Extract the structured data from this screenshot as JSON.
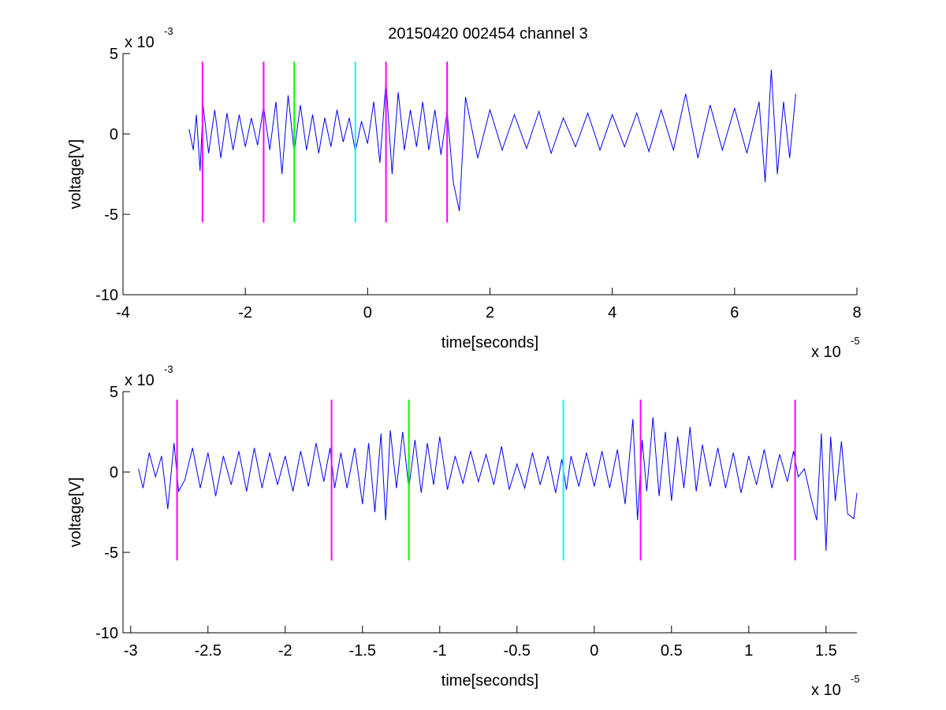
{
  "figure": {
    "title": "20150420 002454 channel 3",
    "background": "#ffffff"
  },
  "colors": {
    "signal": "#0000ff",
    "marker_magenta": "#ff00ff",
    "marker_green": "#00ff00",
    "marker_cyan": "#00ffff",
    "axis": "#000000"
  },
  "chart_data": [
    {
      "type": "line",
      "title": "20150420 002454 channel 3",
      "xlabel": "time[seconds]",
      "ylabel": "voltage[V]",
      "x_exponent_label": "x 10",
      "x_exponent": "-5",
      "y_exponent_label": "x 10",
      "y_exponent": "-3",
      "xlim": [
        -4,
        8
      ],
      "ylim": [
        -10,
        5
      ],
      "xticks": [
        -4,
        -2,
        0,
        2,
        4,
        6,
        8
      ],
      "xtick_labels": [
        "-4",
        "-2",
        "0",
        "2",
        "4",
        "6",
        "8"
      ],
      "yticks": [
        -10,
        -5,
        0,
        5
      ],
      "ytick_labels": [
        "-10",
        "-5",
        "0",
        "5"
      ],
      "grid": false,
      "series": [
        {
          "x": [
            -2.92,
            -2.85,
            -2.8,
            -2.74,
            -2.69,
            -2.6,
            -2.5,
            -2.4,
            -2.3,
            -2.2,
            -2.1,
            -2.0,
            -1.9,
            -1.8,
            -1.7,
            -1.6,
            -1.5,
            -1.4,
            -1.3,
            -1.2,
            -1.1,
            -1.0,
            -0.9,
            -0.8,
            -0.7,
            -0.6,
            -0.5,
            -0.4,
            -0.3,
            -0.2,
            -0.1,
            0.0,
            0.1,
            0.2,
            0.3,
            0.4,
            0.5,
            0.6,
            0.7,
            0.8,
            0.9,
            1.0,
            1.1,
            1.2,
            1.3,
            1.4,
            1.5,
            1.6,
            1.8,
            2.0,
            2.2,
            2.4,
            2.6,
            2.8,
            3.0,
            3.2,
            3.4,
            3.6,
            3.8,
            4.0,
            4.2,
            4.4,
            4.6,
            4.8,
            5.0,
            5.2,
            5.4,
            5.6,
            5.8,
            6.0,
            6.2,
            6.4,
            6.5,
            6.6,
            6.7,
            6.8,
            6.9,
            7.0
          ],
          "values": [
            0.3,
            -1.0,
            1.2,
            -2.3,
            1.8,
            -1.2,
            1.5,
            -1.5,
            1.3,
            -1.0,
            1.2,
            -0.8,
            1.0,
            -0.7,
            1.7,
            -1.0,
            2.0,
            -2.5,
            2.4,
            -1.1,
            1.8,
            -1.0,
            1.2,
            -1.2,
            1.0,
            -0.8,
            1.5,
            -0.5,
            1.0,
            -1.1,
            0.8,
            -0.6,
            2.0,
            -1.8,
            3.3,
            -2.5,
            2.6,
            -1.0,
            1.5,
            -0.8,
            2.0,
            -1.0,
            1.5,
            -1.3,
            1.4,
            -3.0,
            -4.8,
            2.3,
            -1.5,
            1.5,
            -1.0,
            1.2,
            -0.9,
            1.4,
            -1.2,
            1.0,
            -0.8,
            1.3,
            -1.0,
            1.2,
            -0.8,
            1.3,
            -1.1,
            1.5,
            -1.0,
            2.5,
            -1.5,
            1.8,
            -1.0,
            1.6,
            -1.2,
            2.0,
            -3.0,
            4.0,
            -2.5,
            2.0,
            -1.5,
            2.5
          ]
        }
      ],
      "markers": [
        {
          "x": -2.7,
          "color": "#ff00ff",
          "ymin": -5.5,
          "ymax": 4.5
        },
        {
          "x": -1.7,
          "color": "#ff00ff",
          "ymin": -5.5,
          "ymax": 4.5
        },
        {
          "x": -1.2,
          "color": "#00ff00",
          "ymin": -5.5,
          "ymax": 4.5
        },
        {
          "x": -0.2,
          "color": "#00ffff",
          "ymin": -5.5,
          "ymax": 4.5
        },
        {
          "x": 0.3,
          "color": "#ff00ff",
          "ymin": -5.5,
          "ymax": 4.5
        },
        {
          "x": 1.3,
          "color": "#ff00ff",
          "ymin": -5.5,
          "ymax": 4.5
        }
      ]
    },
    {
      "type": "line",
      "title": "",
      "xlabel": "time[seconds]",
      "ylabel": "voltage[V]",
      "x_exponent_label": "x 10",
      "x_exponent": "-5",
      "y_exponent_label": "x 10",
      "y_exponent": "-3",
      "xlim": [
        -3.05,
        1.7
      ],
      "ylim": [
        -10,
        5
      ],
      "xticks": [
        -3,
        -2.5,
        -2,
        -1.5,
        -1,
        -0.5,
        0,
        0.5,
        1,
        1.5
      ],
      "xtick_labels": [
        "-3",
        "-2.5",
        "-2",
        "-1.5",
        "-1",
        "-0.5",
        "0",
        "0.5",
        "1",
        "1.5"
      ],
      "yticks": [
        -10,
        -5,
        0,
        5
      ],
      "ytick_labels": [
        "-10",
        "-5",
        "0",
        "5"
      ],
      "grid": false,
      "series": [
        {
          "x": [
            -2.95,
            -2.92,
            -2.88,
            -2.84,
            -2.8,
            -2.76,
            -2.72,
            -2.69,
            -2.65,
            -2.6,
            -2.55,
            -2.5,
            -2.45,
            -2.4,
            -2.35,
            -2.3,
            -2.25,
            -2.2,
            -2.15,
            -2.1,
            -2.05,
            -2.0,
            -1.95,
            -1.9,
            -1.85,
            -1.8,
            -1.75,
            -1.71,
            -1.68,
            -1.64,
            -1.6,
            -1.55,
            -1.5,
            -1.46,
            -1.42,
            -1.38,
            -1.35,
            -1.32,
            -1.28,
            -1.24,
            -1.2,
            -1.16,
            -1.12,
            -1.08,
            -1.04,
            -1.0,
            -0.95,
            -0.9,
            -0.85,
            -0.8,
            -0.75,
            -0.7,
            -0.65,
            -0.6,
            -0.55,
            -0.5,
            -0.45,
            -0.4,
            -0.35,
            -0.3,
            -0.25,
            -0.21,
            -0.18,
            -0.15,
            -0.1,
            -0.05,
            0.0,
            0.05,
            0.1,
            0.15,
            0.2,
            0.25,
            0.28,
            0.31,
            0.34,
            0.38,
            0.42,
            0.46,
            0.5,
            0.54,
            0.58,
            0.62,
            0.66,
            0.7,
            0.75,
            0.8,
            0.85,
            0.9,
            0.95,
            1.0,
            1.05,
            1.1,
            1.15,
            1.2,
            1.25,
            1.29,
            1.32,
            1.36,
            1.4,
            1.44,
            1.47,
            1.5,
            1.53,
            1.56,
            1.6,
            1.64,
            1.68,
            1.7
          ],
          "values": [
            0.2,
            -1.0,
            1.2,
            -0.3,
            1.0,
            -2.3,
            1.8,
            -1.2,
            -0.5,
            1.5,
            -1.0,
            1.2,
            -1.5,
            1.0,
            -0.8,
            1.3,
            -1.2,
            1.5,
            -1.0,
            1.2,
            -0.8,
            1.0,
            -1.2,
            1.3,
            -0.9,
            1.8,
            -0.6,
            1.5,
            -1.0,
            1.2,
            -1.0,
            1.5,
            -2.0,
            1.8,
            -2.5,
            2.4,
            -3.0,
            2.6,
            -1.0,
            2.5,
            -1.0,
            2.0,
            -1.3,
            1.8,
            -0.8,
            2.2,
            -1.1,
            1.0,
            -0.7,
            1.3,
            -0.6,
            1.1,
            -0.8,
            1.6,
            -1.1,
            0.5,
            -1.0,
            1.2,
            -0.8,
            1.0,
            -1.3,
            0.8,
            -1.1,
            1.0,
            -0.9,
            1.2,
            -0.9,
            1.3,
            -1.0,
            1.4,
            -2.0,
            3.3,
            -3.0,
            2.0,
            -1.2,
            3.4,
            -1.5,
            2.5,
            -1.8,
            2.2,
            -1.0,
            2.8,
            -1.2,
            1.7,
            -0.9,
            1.5,
            -1.0,
            1.2,
            -1.3,
            1.0,
            -0.8,
            1.4,
            -1.0,
            1.1,
            -0.6,
            1.3,
            -0.3,
            0.2,
            -1.5,
            -3.0,
            2.4,
            -4.9,
            2.2,
            -1.8,
            1.9,
            -2.6,
            -2.9,
            -1.3
          ]
        }
      ],
      "markers": [
        {
          "x": -2.7,
          "color": "#ff00ff",
          "ymin": -5.5,
          "ymax": 4.5
        },
        {
          "x": -1.7,
          "color": "#ff00ff",
          "ymin": -5.5,
          "ymax": 4.5
        },
        {
          "x": -1.2,
          "color": "#00ff00",
          "ymin": -5.5,
          "ymax": 4.5
        },
        {
          "x": -0.2,
          "color": "#00ffff",
          "ymin": -5.5,
          "ymax": 4.5
        },
        {
          "x": 0.3,
          "color": "#ff00ff",
          "ymin": -5.5,
          "ymax": 4.5
        },
        {
          "x": 1.3,
          "color": "#ff00ff",
          "ymin": -5.5,
          "ymax": 4.5
        }
      ]
    }
  ]
}
